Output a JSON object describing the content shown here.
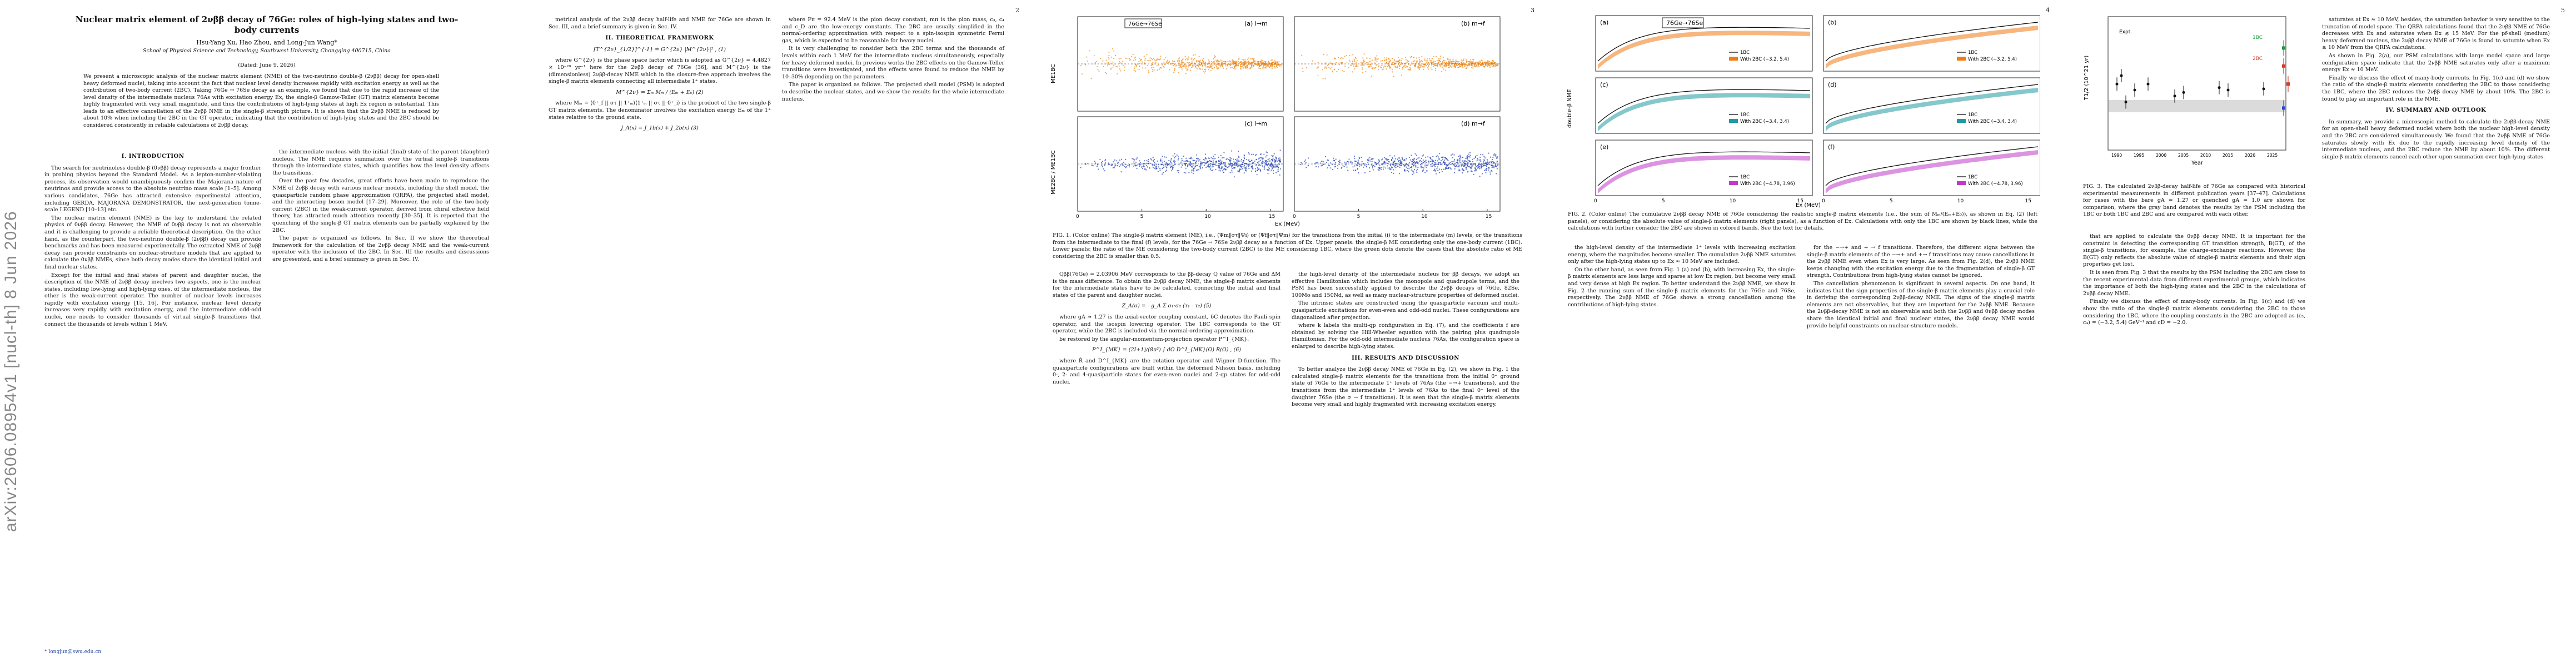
{
  "arxiv_stamp": "arXiv:2606.08954v1 [nucl-th] 8 Jun 2026",
  "page_numbers": [
    "2",
    "3",
    "4",
    "5"
  ],
  "title": "Nuclear matrix element of 2νββ decay of 76Ge: roles of high-lying states and two-body currents",
  "authors": "Hsu-Yang Xu, Hao Zhou, and Long-Jun Wang*",
  "affiliation": "School of Physical Science and Technology, Southwest University, Chongqing 400715, China",
  "date": "(Dated: June 9, 2026)",
  "abstract": "We present a microscopic analysis of the nuclear matrix element (NME) of the two-neutrino double-β (2νββ) decay for open-shell heavy deformed nuclei, taking into account the fact that nuclear level density increases rapidly with excitation energy as well as the contribution of two-body current (2BC). Taking 76Ge → 76Se decay as an example, we found that due to the rapid increase of the level density of the intermediate nucleus 76As with excitation energy Ex, the single-β Gamow-Teller (GT) matrix elements become highly fragmented with very small magnitude, and thus the contributions of high-lying states at high Ex region is substantial. This leads to an effective cancellation of the 2νββ NME in the single-β strength picture. It is shown that the 2νββ NME is reduced by about 10% when including the 2BC in the GT operator, indicating that the contribution of high-lying states and the 2BC should be considered consistently in reliable calculations of 2νββ decay.",
  "sections": {
    "intro": "I. INTRODUCTION",
    "theory": "II. THEORETICAL FRAMEWORK",
    "results": "III. RESULTS AND DISCUSSION",
    "summary": "IV. SUMMARY AND OUTLOOK"
  },
  "page1": {
    "col1": [
      "The search for neutrinoless double-β (0νββ) decay represents a major frontier in probing physics beyond the Standard Model. As a lepton-number-violating process, its observation would unambiguously confirm the Majorana nature of neutrinos and provide access to the absolute neutrino mass scale [1–5]. Among various candidates, 76Ge has attracted extensive experimental attention, including GERDA, MAJORANA DEMONSTRATOR, the next-generation tonne-scale LEGEND [10–13] etc.",
      "The nuclear matrix element (NME) is the key to understand the related physics of 0νββ decay. However, the NME of 0νββ decay is not an observable and it is challenging to provide a reliable theoretical description. On the other hand, as the counterpart, the two-neutrino double-β (2νββ) decay can provide benchmarks and has been measured experimentally. The extracted NME of 2νββ decay can provide constraints on nuclear-structure models that are applied to calculate the 0νββ NMEs, since both decay modes share the identical initial and final nuclear states.",
      "Except for the initial and final states of parent and daughter nuclei, the description of the NME of 2νββ decay involves two aspects, one is the nuclear states, including low-lying and high-lying ones, of the intermediate nucleus, the other is the weak-current operator. The number of nuclear levels increases rapidly with excitation energy [15, 16]. For instance, nuclear level density increases very rapidly with excitation energy, and the intermediate odd-odd nuclei, one needs to consider thousands of virtual single-β transitions that connect the thousands of levels within 1 MeV."
    ],
    "col2": [
      "the intermediate nucleus with the initial (final) state of the parent (daughter) nucleus. The NME requires summation over the virtual single-β transitions through the intermediate states, which quantifies how the level density affects the transitions.",
      "Over the past few decades, great efforts have been made to reproduce the NME of 2νββ decay with various nuclear models, including the shell model, the quasiparticle random phase approximation (QRPA), the projected shell model, and the interacting boson model [17–29]. Moreover, the role of the two-body current (2BC) in the weak-current operator, derived from chiral effective field theory, has attracted much attention recently [30–35]. It is reported that the quenching of the single-β GT matrix elements can be partially explained by the 2BC.",
      "The paper is organized as follows. In Sec. II we show the theoretical framework for the calculation of the 2νββ decay NME and the weak-current operator with the inclusion of the 2BC. In Sec. III the results and discussions are presented, and a brief summary is given in Sec. IV."
    ],
    "email": "* longjun@swu.edu.cn"
  },
  "page2": {
    "col1": [
      "metrical analysis of the 2νββ decay half-life and NME for 76Ge are shown in Sec. III, and a brief summary is given in Sec. IV."
    ],
    "eq1": "[T^{2ν}_{1/2}]^{-1} = G^{2ν} |M^{2ν}|² ,   (1)",
    "col1b": "where G^{2ν} is the phase space factor which is adopted as G^{2ν} = 4.4827 × 10⁻²⁰ yr⁻¹ here for the 2νββ decay of 76Ge [36], and M^{2ν} is the (dimensionless) 2νββ-decay NME which in the closure-free approach involves the single-β matrix elements connecting all intermediate 1⁺ states.",
    "eq2": "M^{2ν} = Σₘ Mₘ / (Eₘ + E₀)   (2)",
    "col1c": "where Mₘ = ⟨0⁺_f || στ || 1⁺ₘ⟩⟨1⁺ₘ || στ || 0⁺_i⟩ is the product of the two single-β GT matrix elements. The denominator involves the excitation energy Eₘ of the 1⁺ states relative to the ground state.",
    "eq3": "J_A(x) = J_1b(x) + J_2b(x)   (3)",
    "col2": [
      "where Fπ = 92.4 MeV is the pion decay constant, mπ is the pion mass, c₃, c₄ and c_D are the low-energy constants. The 2BC are usually simplified in the normal-ordering approximation with respect to a spin-isospin symmetric Fermi gas, which is expected to be reasonable for heavy nuclei.",
      "It is very challenging to consider both the 2BC terms and the thousands of levels within each 1 MeV for the intermediate nucleus simultaneously, especially for heavy deformed nuclei. In previous works the 2BC effects on the Gamow-Teller transitions were investigated, and the effects were found to reduce the NME by 10–30% depending on the parameters.",
      "The paper is organized as follows. The projected shell model (PSM) is adopted to describe the nuclear states, and we show the results for the whole intermediate nucleus."
    ]
  },
  "page3": {
    "col1": [
      "Qββ(76Ge) = 2.03906 MeV corresponds to the ββ-decay Q value of 76Ge and ΔM is the mass difference. To obtain the 2νββ decay NME, the single-β matrix elements for the intermediate states have to be calculated, connecting the initial and final states of the parent and daughter nuclei.",
      "Ẑ_A(σ) = - g_A Σ σ₁·σ₂ (τ₁ - τ₂)   (5)",
      "where gA ≈ 1.27 is the axial-vector coupling constant, δC denotes the Pauli spin operator, and the isospin lowering operator. The 1BC corresponds to the GT operator, while the 2BC is included via the normal-ordering approximation.",
      "be restored by the angular-momentum-projection operator P^I_{MK}."
    ],
    "eq6": "P^I_{MK} = (2I+1)/(8π²) ∫ dΩ D^I_{MK}(Ω) R̂(Ω) ,   (6)",
    "col1b": "where R̂ and D^I_{MK} are the rotation operator and Wigner D-function. The quasiparticle configurations are built within the deformed Nilsson basis, including 0-, 2- and 4-quasiparticle states for even-even nuclei and 2-qp states for odd-odd nuclei.",
    "col2": [
      "the high-level density of the intermediate nucleus for ββ decays, we adopt an effective Hamiltonian which includes the monopole and quadrupole terms, and the PSM has been successfully applied to describe the 2νββ decays of 76Ge, 82Se, 100Mo and 150Nd, as well as many nuclear-structure properties of deformed nuclei.",
      "The intrinsic states are constructed using the quasiparticle vacuum and multi-quasiparticle excitations for even-even and odd-odd nuclei. These configurations are diagonalized after projection.",
      "where k labels the multi-qp configuration in Eq. (7), and the coefficients f are obtained by solving the Hill-Wheeler equation with the pairing plus quadrupole Hamiltonian. For the odd-odd intermediate nucleus 76As, the configuration space is enlarged to describe high-lying states."
    ],
    "results_col": [
      "To better analyze the 2νββ decay NME of 76Ge in Eq. (2), we show in Fig. 1 the calculated single-β matrix elements for the transitions from the initial 0⁺ ground state of 76Ge to the intermediate 1⁺ levels of 76As (the −→+ transitions), and the transitions from the intermediate 1⁺ levels of 76As to the final 0⁺ level of the daughter 76Se (the σ → f transitions). It is seen that the single-β matrix elements become very small and highly fragmented with increasing excitation energy."
    ]
  },
  "page4": {
    "col1": [
      "the high-level density of the intermediate 1⁺ levels with increasing excitation energy, where the magnitudes become smaller. The cumulative 2νββ NME saturates only after the high-lying states up to Ex ≈ 10 MeV are included.",
      "On the other hand, as seen from Fig. 1 (a) and (b), with increasing Ex, the single-β matrix elements are less large and sparse at low Ex region, but become very small and very dense at high Ex region. To better understand the 2νββ NME, we show in Fig. 2 the running sum of the single-β matrix elements for the 76Ge and 76Se, respectively. The 2νββ NME of 76Ge shows a strong cancellation among the contributions of high-lying states."
    ],
    "col2": [
      "for the −→+ and + → f transitions. Therefore, the different signs between the single-β matrix elements of the −→+ and +→ f transitions may cause cancellations in the 2νββ NME even when Ex is very large. As seen from Fig. 2(d), the 2νββ NME keeps changing with the excitation energy due to the fragmentation of single-β GT strength. Contributions from high-lying states cannot be ignored.",
      "The cancellation phenomenon is significant in several aspects. On one hand, it indicates that the sign properties of the single-β matrix elements play a crucial role in deriving the corresponding 2νββ-decay NME. The signs of the single-β matrix elements are not observables, but they are important for the 2νββ NME. Because the 2νββ-decay NME is not an observable and both the 2νββ and 0νββ decay modes share the identical initial and final nuclear states, the 2νββ decay NME would provide helpful constraints on nuclear-structure models."
    ]
  },
  "page5": {
    "col1": [
      "that are applied to calculate the 0νββ decay NME. It is important for the constraint is detecting the corresponding GT transition strength, B(GT), of the single-β transitions, for example, the charge-exchange reactions. However, the B(GT) only reflects the absolute value of single-β matrix elements and their sign properties get lost.",
      "It is seen from Fig. 3 that the results by the PSM including the 2BC are close to the recent experimental data from different experimental groups, which indicates the importance of both the high-lying states and the 2BC in the calculations of 2νββ decay NME.",
      "Finally we discuss the effect of many-body currents. In Fig. 1(c) and (d) we show the ratio of the single-β matrix elements considering the 2BC to those considering the 1BC, where the coupling constants in the 2BC are adopted as (c₃, c₄) = (−3.2, 5.4) GeV⁻¹ and cD = −2.0."
    ],
    "col2": [
      "saturates at Ex ≈ 10 MeV, besides, the saturation behavior is very sensitive to the truncation of model space. The QRPA calculations found that the 2νββ NME of 76Ge decreases with Ex and saturates when Ex ≲ 15 MeV. For the pf-shell (medium) heavy deformed nucleus, the 2νββ decay NME of 76Ge is found to saturate when Ex ≳ 10 MeV from the QRPA calculations.",
      "As shown in Fig. 2(a), our PSM calculations with large model space and large configuration space indicate that the 2νββ NME saturates only after a maximum energy Ex ≈ 10 MeV.",
      "Finally we discuss the effect of many-body currents. In Fig. 1(c) and (d) we show the ratio of the single-β matrix elements considering the 2BC to those considering the 1BC, where the 2BC reduces the 2νββ decay NME by about 10%. The 2BC is found to play an important role in the NME."
    ],
    "summary": "In summary, we provide a microscopic method to calculate the 2νββ-decay NME for an open-shell heavy deformed nuclei where both the nuclear high-level density and the 2BC are considered simultaneously. We found that the 2νββ NME of 76Ge saturates slowly with Ex due to the rapidly increasing level density of the intermediate nucleus, and the 2BC reduce the NME by about 10%. The different single-β matrix elements cancel each other upon summation over high-lying states."
  },
  "fig1": {
    "legend": "76Ge→76Se",
    "panel_labels": [
      "(a) i→m",
      "(b) m→f",
      "(c) i→m",
      "(d) m→f"
    ],
    "ylabel_top": "ME1BC",
    "ylabel_bottom": "ME2BC / ME1BC",
    "xlabel": "Ex (MeV)",
    "x_ticks": [
      "0",
      "5",
      "10",
      "15"
    ],
    "caption": "FIG. 1. (Color online) The single-β matrix element (ME), i.e., ⟨Ψm‖στ‖Ψi⟩ or ⟨Ψf‖στ‖Ψm⟩ for the transitions from the initial (i) to the intermediate (m) levels, or the transitions from the intermediate to the final (f) levels, for the 76Ge → 76Se 2νββ decay as a function of Ex. Upper panels: the single-β ME considering only the one-body current (1BC). Lower panels: the ratio of the ME considering the two-body current (2BC) to the ME considering 1BC, where the green dots denote the cases that the absolute ratio of ME considering the 2BC is smaller than 0.5.",
    "colors": {
      "orange": "#f28c1c",
      "blue": "#2a47b8",
      "green": "#28a838"
    }
  },
  "fig2": {
    "legend_title": "76Ge→76Se",
    "panel_labels": [
      "(a)",
      "(b)",
      "(c)",
      "(d)",
      "(e)",
      "(f)"
    ],
    "legend_entries": [
      [
        "1BC",
        "With 2BC (−3.2, 5.4)"
      ],
      [
        "1BC",
        "With 2BC (−3.2, 5.4)"
      ],
      [
        "1BC",
        "With 2BC (−3.4, 3.4)"
      ],
      [
        "1BC",
        "With 2BC (−3.4, 3.4)"
      ],
      [
        "1BC",
        "With 2BC (−4.78, 3.96)"
      ],
      [
        "1BC",
        "With 2BC (−4.78, 3.96)"
      ]
    ],
    "ylabel": "double-β NME",
    "xlabel": "Ex (MeV)",
    "x_ticks": [
      "0",
      "5",
      "10",
      "15"
    ],
    "caption": "FIG. 2. (Color online) The cumulative 2νββ decay NME of 76Ge considering the realistic single-β matrix elements (i.e., the sum of Mₘ/(Eₘ+E₀)), as shown in Eq. (2) (left panels), or considering the absolute value of single-β matrix elements (right panels), as a function of Ex. Calculations with only the 1BC are shown by black lines, while the calculations with further consider the 2BC are shown in colored bands. See the text for details.",
    "colors": {
      "orange": "#f07a14",
      "teal": "#1f9aa0",
      "magenta": "#c03ac8",
      "red": "#d8332e"
    }
  },
  "fig3": {
    "ylabel": "T1/2 (10^21 yr)",
    "xlabel": "Year",
    "x_ticks": [
      "1990",
      "1995",
      "2000",
      "2005",
      "2010",
      "2015",
      "2020",
      "2025"
    ],
    "labels": [
      "1BC",
      "2BC",
      "Expt."
    ],
    "caption": "FIG. 3. The calculated 2νββ-decay half-life of 76Ge as compared with historical experimental measurements in different publication years [37–47]. Calculations for cases with the bare gA = 1.27 or quenched gA = 1.0 are shown for comparison, where the gray band denotes the results by the PSM including the 1BC or both 1BC and 2BC and are compared with each other.",
    "colors": {
      "red": "#d43a2a",
      "blue": "#2a4ad0",
      "green": "#1f9a3a",
      "black": "#111111"
    }
  }
}
